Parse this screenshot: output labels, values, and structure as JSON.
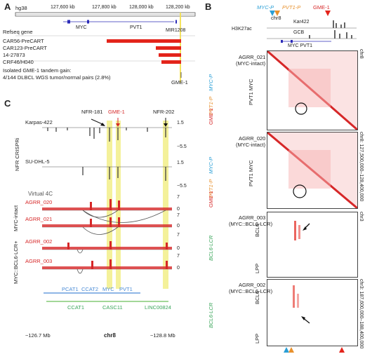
{
  "panelA": {
    "letter": "A",
    "genome": "hg38",
    "ticks": [
      "127,600 kb",
      "127,800 kb",
      "128,000 kb",
      "128,200 kb"
    ],
    "track_label": "Refseq gene",
    "genes": [
      "MYC",
      "PVT1",
      "MIR1208"
    ],
    "samples": [
      "CAR56-PreCART",
      "CAR123-PreCART",
      "14-27873",
      "CRF46/H040"
    ],
    "note": "Isolated GME-1 tandem gain:",
    "note2": "4/144 DLBCL WGS tumor/normal pairs (2.8%)",
    "gme_label": "GME-1"
  },
  "panelB": {
    "letter": "B",
    "chrom": "chr8",
    "top_labels": {
      "myc_p": "MYC-P",
      "pvt1_p": "PVT1-P",
      "gme1": "GME-1"
    },
    "track1": "H3K27ac",
    "kar": "Kar422",
    "gcb": "GCB",
    "gene_row": "MYC PVT1",
    "maps": [
      {
        "title": "AGRR_021",
        "subtitle": "(MYC-intact)",
        "side": "PVT1 MYC",
        "right": "chr8",
        "myc": "MYC-P",
        "pvt": "PVT1-P",
        "gme": "GME-1"
      },
      {
        "title": "AGRR_020",
        "subtitle": "(MYC-intact)",
        "side": "PVT1 MYC",
        "right": "chr8: 127,500,000–128,400,000",
        "myc": "MYC-P",
        "pvt": "PVT1-P",
        "gme": "GME-1"
      },
      {
        "title": "AGRR_003",
        "subtitle": "(MYC::BCL6-LCR)",
        "side_top": "BCL6",
        "side_bot": "LPP",
        "right": "chr3",
        "lcr": "BCL6-LCR"
      },
      {
        "title": "AGRR_002",
        "subtitle": "(MYC::BCL6-LCR)",
        "side_top": "BCL6",
        "side_bot": "LPP",
        "right": "chr3: 187,600,000–188,400,000",
        "lcr": "BCL6-LCR"
      }
    ]
  },
  "panelC": {
    "letter": "C",
    "nfr_labels": [
      "NFR-181",
      "GME-1",
      "NFR-202"
    ],
    "crispri_label": "NFR CRISPRi",
    "cell_lines": [
      "Karpas-422",
      "SU-DHL-5"
    ],
    "crispri_ticks": [
      "1.5",
      "−5.5",
      "1.5",
      "−5.5"
    ],
    "v4c_label": "Virtual 4C",
    "groups": [
      "MYC-intact",
      "MYC::BCL6-LCR+"
    ],
    "samples": [
      "AGRR_020",
      "AGRR_021",
      "AGRR_002",
      "AGRR_003"
    ],
    "v4c_ticks": [
      "7",
      "0",
      "7",
      "0",
      "7",
      "0",
      "7",
      "0"
    ],
    "genes_blue": [
      "PCAT1",
      "CCAT2",
      "MYC",
      "PVT1"
    ],
    "genes_green": [
      "CCAT1",
      "CASC11",
      "LINC00824"
    ],
    "axis": [
      "~126.7 Mb",
      "chr8",
      "~128.8 Mb"
    ]
  },
  "colors": {
    "red": "#e3241b",
    "blue": "#2a9fd6",
    "orange": "#e8912d",
    "green": "#3aa55a",
    "highlight": "#f4f19a"
  }
}
